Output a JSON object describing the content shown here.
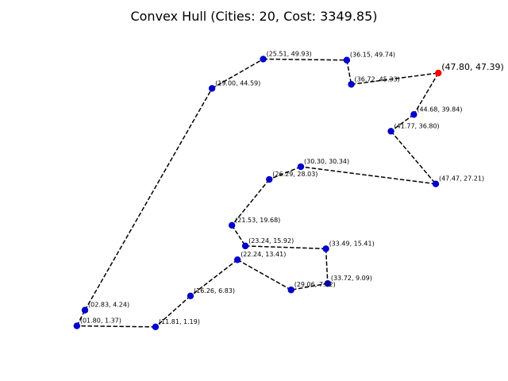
{
  "chart_data": {
    "type": "line",
    "title": "Convex Hull (Cities: 20, Cost: 3349.85)",
    "xlabel": "",
    "ylabel": "",
    "axes_visible": false,
    "grid": false,
    "xlim": [
      0.1,
      50.2
    ],
    "ylim": [
      -1.0,
      52.3
    ],
    "route_style": "dashed",
    "colors": {
      "route": "#000000",
      "city": "#0000cc",
      "start_city": "#ff0000",
      "text": "#000000"
    },
    "points": [
      {
        "x": 47.8,
        "y": 47.39,
        "label": "(47.80, 47.39)",
        "start": true
      },
      {
        "x": 44.68,
        "y": 39.84,
        "label": "(44.68, 39.84)"
      },
      {
        "x": 41.77,
        "y": 36.8,
        "label": "(41.77, 36.80)"
      },
      {
        "x": 47.47,
        "y": 27.21,
        "label": "(47.47, 27.21)"
      },
      {
        "x": 30.3,
        "y": 30.34,
        "label": "(30.30, 30.34)"
      },
      {
        "x": 26.29,
        "y": 28.03,
        "label": "(26.29, 28.03)"
      },
      {
        "x": 21.53,
        "y": 19.68,
        "label": "(21.53, 19.68)"
      },
      {
        "x": 23.24,
        "y": 15.92,
        "label": "(23.24, 15.92)"
      },
      {
        "x": 33.49,
        "y": 15.41,
        "label": "(33.49, 15.41)"
      },
      {
        "x": 33.72,
        "y": 9.09,
        "label": "(33.72,  9.09)"
      },
      {
        "x": 29.06,
        "y": 7.92,
        "label": "(29.06,  7.92)"
      },
      {
        "x": 22.24,
        "y": 13.41,
        "label": "(22.24, 13.41)"
      },
      {
        "x": 16.26,
        "y": 6.83,
        "label": "(16.26,  6.83)"
      },
      {
        "x": 11.81,
        "y": 1.19,
        "label": "(11.81,  1.19)"
      },
      {
        "x": 1.8,
        "y": 1.37,
        "label": "(01.80,  1.37)"
      },
      {
        "x": 2.83,
        "y": 4.24,
        "label": "(02.83,  4.24)"
      },
      {
        "x": 19.0,
        "y": 44.59,
        "label": "(19.00, 44.59)"
      },
      {
        "x": 25.51,
        "y": 49.93,
        "label": "(25.51, 49.93)"
      },
      {
        "x": 36.15,
        "y": 49.74,
        "label": "(36.15, 49.74)"
      },
      {
        "x": 36.72,
        "y": 45.33,
        "label": "(36.72, 45.33)"
      }
    ],
    "route_closed": true
  }
}
